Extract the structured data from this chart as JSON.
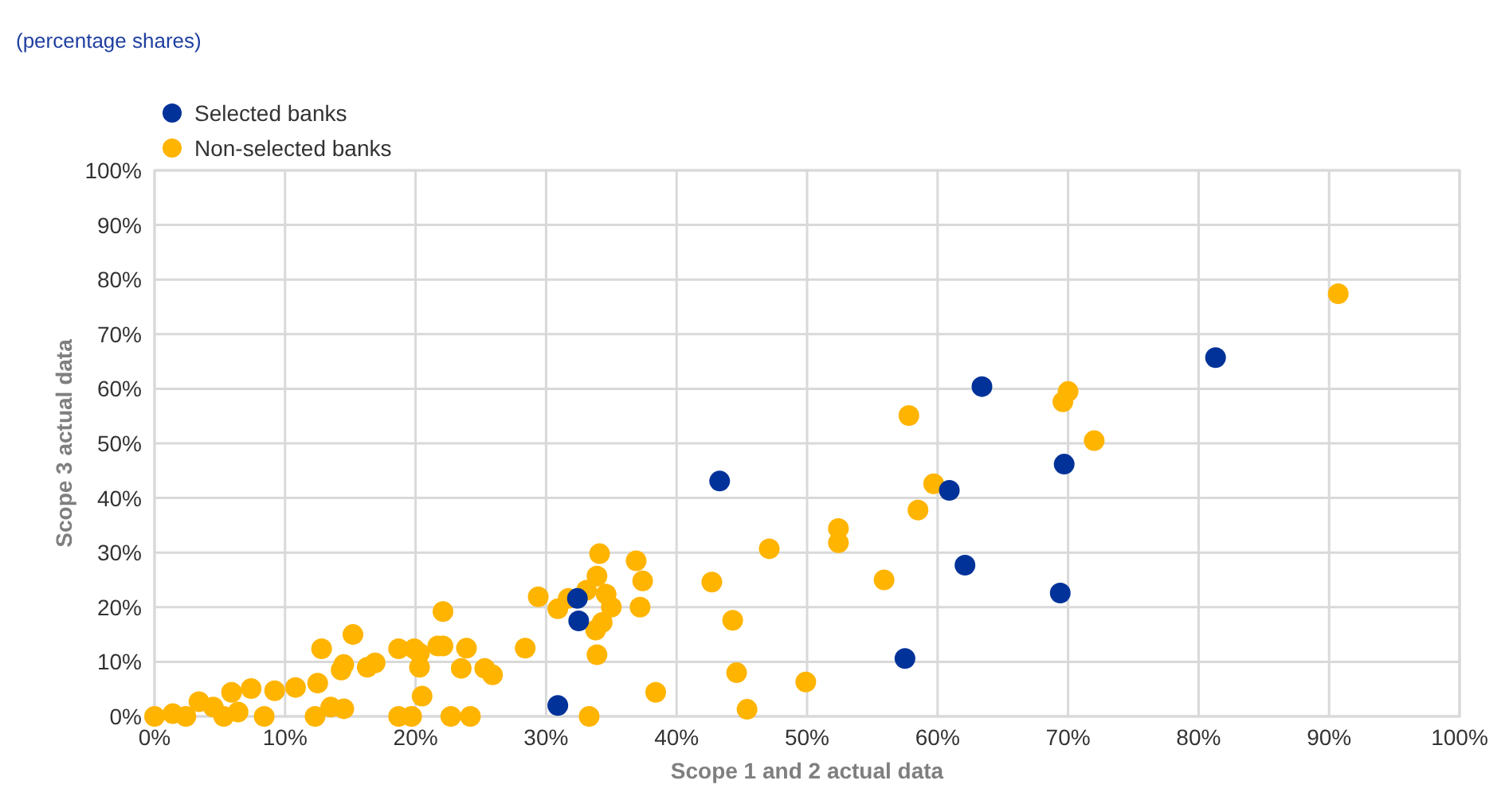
{
  "chart_data": {
    "type": "scatter",
    "title": "(percentage shares)",
    "xlabel": "Scope 1 and 2 actual data",
    "ylabel": "Scope 3 actual data",
    "xlim": [
      0,
      100
    ],
    "ylim": [
      0,
      100
    ],
    "xticks": [
      {
        "value": 0,
        "label": "0%"
      },
      {
        "value": 10,
        "label": "10%"
      },
      {
        "value": 20,
        "label": "20%"
      },
      {
        "value": 30,
        "label": "30%"
      },
      {
        "value": 40,
        "label": "40%"
      },
      {
        "value": 50,
        "label": "50%"
      },
      {
        "value": 60,
        "label": "60%"
      },
      {
        "value": 70,
        "label": "70%"
      },
      {
        "value": 80,
        "label": "80%"
      },
      {
        "value": 90,
        "label": "90%"
      },
      {
        "value": 100,
        "label": "100%"
      }
    ],
    "yticks": [
      {
        "value": 0,
        "label": "0%"
      },
      {
        "value": 10,
        "label": "10%"
      },
      {
        "value": 20,
        "label": "20%"
      },
      {
        "value": 30,
        "label": "30%"
      },
      {
        "value": 40,
        "label": "40%"
      },
      {
        "value": 50,
        "label": "50%"
      },
      {
        "value": 60,
        "label": "60%"
      },
      {
        "value": 70,
        "label": "70%"
      },
      {
        "value": 80,
        "label": "80%"
      },
      {
        "value": 90,
        "label": "90%"
      },
      {
        "value": 100,
        "label": "100%"
      }
    ],
    "grid": true,
    "legend": "top left",
    "marker": "circle",
    "series": [
      {
        "name": "Selected banks",
        "color": "#003299",
        "x": [
          81.3,
          63.4,
          43.3,
          69.7,
          60.9,
          62.1,
          69.4,
          57.5,
          30.9,
          32.5,
          32.4
        ],
        "values": [
          65.7,
          60.4,
          43.1,
          46.2,
          41.4,
          27.7,
          22.6,
          10.6,
          2.0,
          17.5,
          21.6
        ]
      },
      {
        "name": "Non-selected banks",
        "color": "#ffb400",
        "x": [
          90.7,
          70.0,
          69.6,
          72.0,
          57.8,
          59.7,
          58.5,
          52.4,
          52.4,
          55.9,
          47.1,
          42.7,
          44.3,
          44.6,
          45.4,
          49.9,
          38.4,
          34.1,
          36.9,
          37.4,
          37.2,
          33.9,
          33.1,
          34.6,
          35.0,
          34.3,
          33.8,
          33.9,
          31.7,
          30.9,
          29.4,
          28.4,
          33.3,
          22.1,
          22.1,
          23.9,
          23.5,
          25.3,
          25.9,
          22.7,
          24.2,
          0,
          1.4,
          2.4,
          3.4,
          4.5,
          5.3,
          5.9,
          6.4,
          7.4,
          8.4,
          9.2,
          10.8,
          12.5,
          12.8,
          12.3,
          13.5,
          14.5,
          14.5,
          15.2,
          14.3,
          16.3,
          16.9,
          18.7,
          19.9,
          20.3,
          20.5,
          21.7,
          18.7,
          19.7,
          20.3
        ],
        "values": [
          77.4,
          59.5,
          57.6,
          50.5,
          55.1,
          42.6,
          37.8,
          34.4,
          31.8,
          25.0,
          30.7,
          24.6,
          17.6,
          8.0,
          1.3,
          6.3,
          4.4,
          29.8,
          28.5,
          24.8,
          20.0,
          25.7,
          23.1,
          22.4,
          20.0,
          17.2,
          15.8,
          11.3,
          21.6,
          19.7,
          21.9,
          12.5,
          0,
          19.2,
          12.9,
          12.5,
          8.8,
          8.8,
          7.6,
          0,
          0,
          0,
          0.5,
          0,
          2.7,
          1.7,
          0,
          4.4,
          0.8,
          5.1,
          0,
          4.7,
          5.3,
          6.1,
          12.4,
          0,
          1.7,
          1.4,
          9.5,
          15.0,
          8.5,
          9.0,
          9.8,
          12.4,
          12.4,
          9.0,
          3.7,
          12.9,
          0,
          0,
          11.6
        ]
      }
    ]
  }
}
